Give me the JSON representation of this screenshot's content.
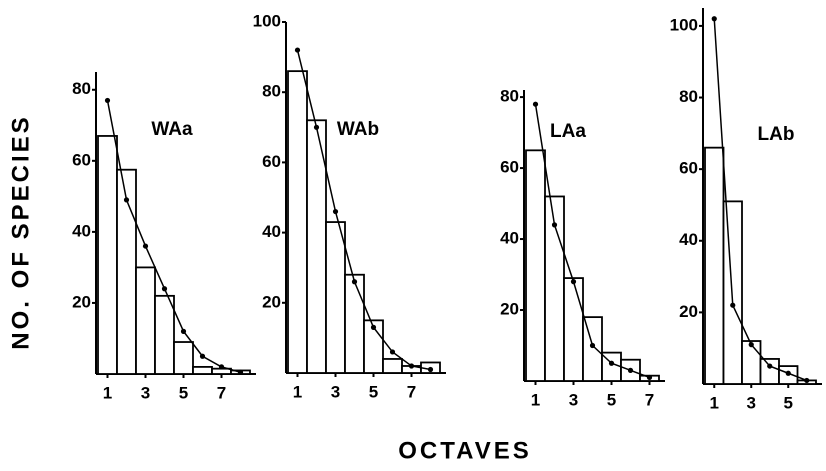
{
  "ylabel": "NO. OF SPECIES",
  "xlabel": "OCTAVES",
  "chart_data": [
    {
      "type": "bar",
      "title": "WAa",
      "x": [
        1,
        2,
        3,
        4,
        5,
        6,
        7,
        8
      ],
      "xlim": [
        0.5,
        8.5
      ],
      "xticks": [
        1,
        3,
        5,
        7
      ],
      "ylim": [
        0,
        85
      ],
      "yticks": [
        20,
        40,
        60,
        80
      ],
      "series": [
        {
          "type": "bar",
          "color": "#ffffff",
          "values": [
            67,
            57.5,
            30,
            22,
            9,
            2,
            1.5,
            1
          ]
        },
        {
          "type": "line",
          "color": "#000000",
          "values": [
            77,
            49,
            36,
            24,
            12,
            5,
            2,
            0.5
          ]
        }
      ]
    },
    {
      "type": "bar",
      "title": "WAb",
      "x": [
        1,
        2,
        3,
        4,
        5,
        6,
        7,
        8
      ],
      "xlim": [
        0.5,
        8.5
      ],
      "xticks": [
        1,
        3,
        5,
        7
      ],
      "ylim": [
        0,
        100
      ],
      "yticks": [
        20,
        40,
        60,
        80,
        100
      ],
      "series": [
        {
          "type": "bar",
          "color": "#ffffff",
          "values": [
            86,
            72,
            43,
            28,
            15,
            4,
            2,
            3
          ]
        },
        {
          "type": "line",
          "color": "#000000",
          "values": [
            92,
            70,
            46,
            26,
            13,
            6,
            2,
            1
          ]
        }
      ]
    },
    {
      "type": "bar",
      "title": "LAa",
      "x": [
        1,
        2,
        3,
        4,
        5,
        6,
        7
      ],
      "xlim": [
        0.5,
        7.5
      ],
      "xticks": [
        1,
        3,
        5,
        7
      ],
      "ylim": [
        0,
        82
      ],
      "yticks": [
        20,
        40,
        60,
        80
      ],
      "series": [
        {
          "type": "bar",
          "color": "#ffffff",
          "values": [
            65,
            52,
            29,
            18,
            8,
            6,
            1.5
          ]
        },
        {
          "type": "line",
          "color": "#000000",
          "values": [
            78,
            44,
            28,
            10,
            5,
            3,
            1
          ]
        }
      ]
    },
    {
      "type": "bar",
      "title": "LAb",
      "x": [
        1,
        2,
        3,
        4,
        5,
        6
      ],
      "xlim": [
        0.5,
        6.5
      ],
      "xticks": [
        1,
        3,
        5
      ],
      "ylim": [
        0,
        105
      ],
      "yticks": [
        20,
        40,
        60,
        80,
        100
      ],
      "series": [
        {
          "type": "bar",
          "color": "#ffffff",
          "values": [
            66,
            51,
            12,
            7,
            5,
            1
          ]
        },
        {
          "type": "line",
          "color": "#000000",
          "values": [
            102,
            22,
            11,
            5,
            3,
            1
          ]
        }
      ]
    }
  ]
}
